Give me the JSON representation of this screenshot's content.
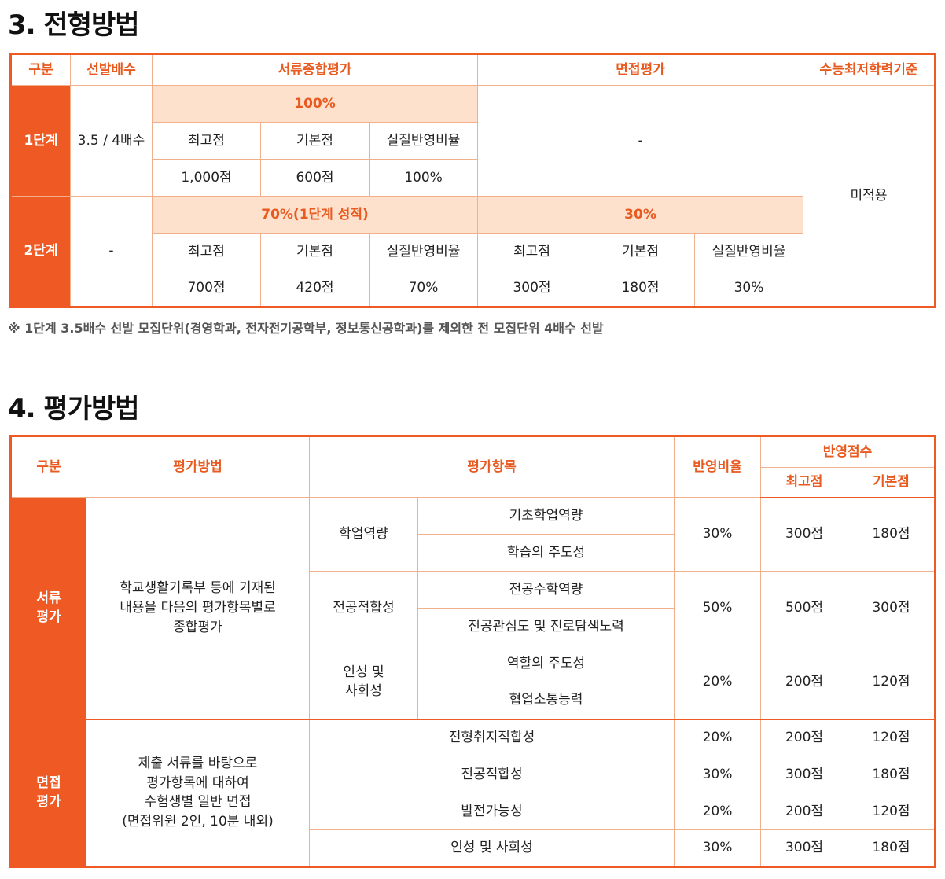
{
  "section3": {
    "title": "3. 전형방법",
    "headers": {
      "gubun": "구분",
      "multiple": "선발배수",
      "docs": "서류종합평가",
      "interview": "면접평가",
      "suneung": "수능최저학력기준"
    },
    "stage1": {
      "label": "1단계",
      "multiple": "3.5 / 4배수",
      "docs_pct": "100%",
      "cols": [
        "최고점",
        "기본점",
        "실질반영비율"
      ],
      "docs_values": [
        "1,000점",
        "600점",
        "100%"
      ],
      "interview": "-"
    },
    "stage2": {
      "label": "2단계",
      "multiple": "-",
      "docs_pct": "70%(1단계 성적)",
      "interview_pct": "30%",
      "cols": [
        "최고점",
        "기본점",
        "실질반영비율"
      ],
      "docs_values": [
        "700점",
        "420점",
        "70%"
      ],
      "interview_values": [
        "300점",
        "180점",
        "30%"
      ]
    },
    "suneung_value": "미적용",
    "note": "※ 1단계 3.5배수 선발 모집단위(경영학과, 전자전기공학부, 정보통신공학과)를 제외한 전 모집단위 4배수 선발"
  },
  "section4": {
    "title": "4. 평가방법",
    "headers": {
      "gubun": "구분",
      "method": "평가방법",
      "items": "평가항목",
      "ratio": "반영비율",
      "score": "반영점수",
      "max": "최고점",
      "base": "기본점"
    },
    "docs": {
      "label": "서류\n평가",
      "method": "학교생활기록부 등에 기재된\n내용을 다음의 평가항목별로\n종합평가",
      "groups": [
        {
          "name": "학업역량",
          "subs": [
            "기초학업역량",
            "학습의 주도성"
          ],
          "ratio": "30%",
          "max": "300점",
          "base": "180점"
        },
        {
          "name": "전공적합성",
          "subs": [
            "전공수학역량",
            "전공관심도 및 진로탐색노력"
          ],
          "ratio": "50%",
          "max": "500점",
          "base": "300점"
        },
        {
          "name": "인성 및\n사회성",
          "subs": [
            "역할의 주도성",
            "협업소통능력"
          ],
          "ratio": "20%",
          "max": "200점",
          "base": "120점"
        }
      ]
    },
    "interview": {
      "label": "면접\n평가",
      "method": "제출 서류를 바탕으로\n평가항목에 대하여\n수험생별 일반 면접\n(면접위원 2인, 10분 내외)",
      "rows": [
        {
          "item": "전형취지적합성",
          "ratio": "20%",
          "max": "200점",
          "base": "120점"
        },
        {
          "item": "전공적합성",
          "ratio": "30%",
          "max": "300점",
          "base": "180점"
        },
        {
          "item": "발전가능성",
          "ratio": "20%",
          "max": "200점",
          "base": "120점"
        },
        {
          "item": "인성 및 사회성",
          "ratio": "30%",
          "max": "300점",
          "base": "180점"
        }
      ]
    }
  }
}
